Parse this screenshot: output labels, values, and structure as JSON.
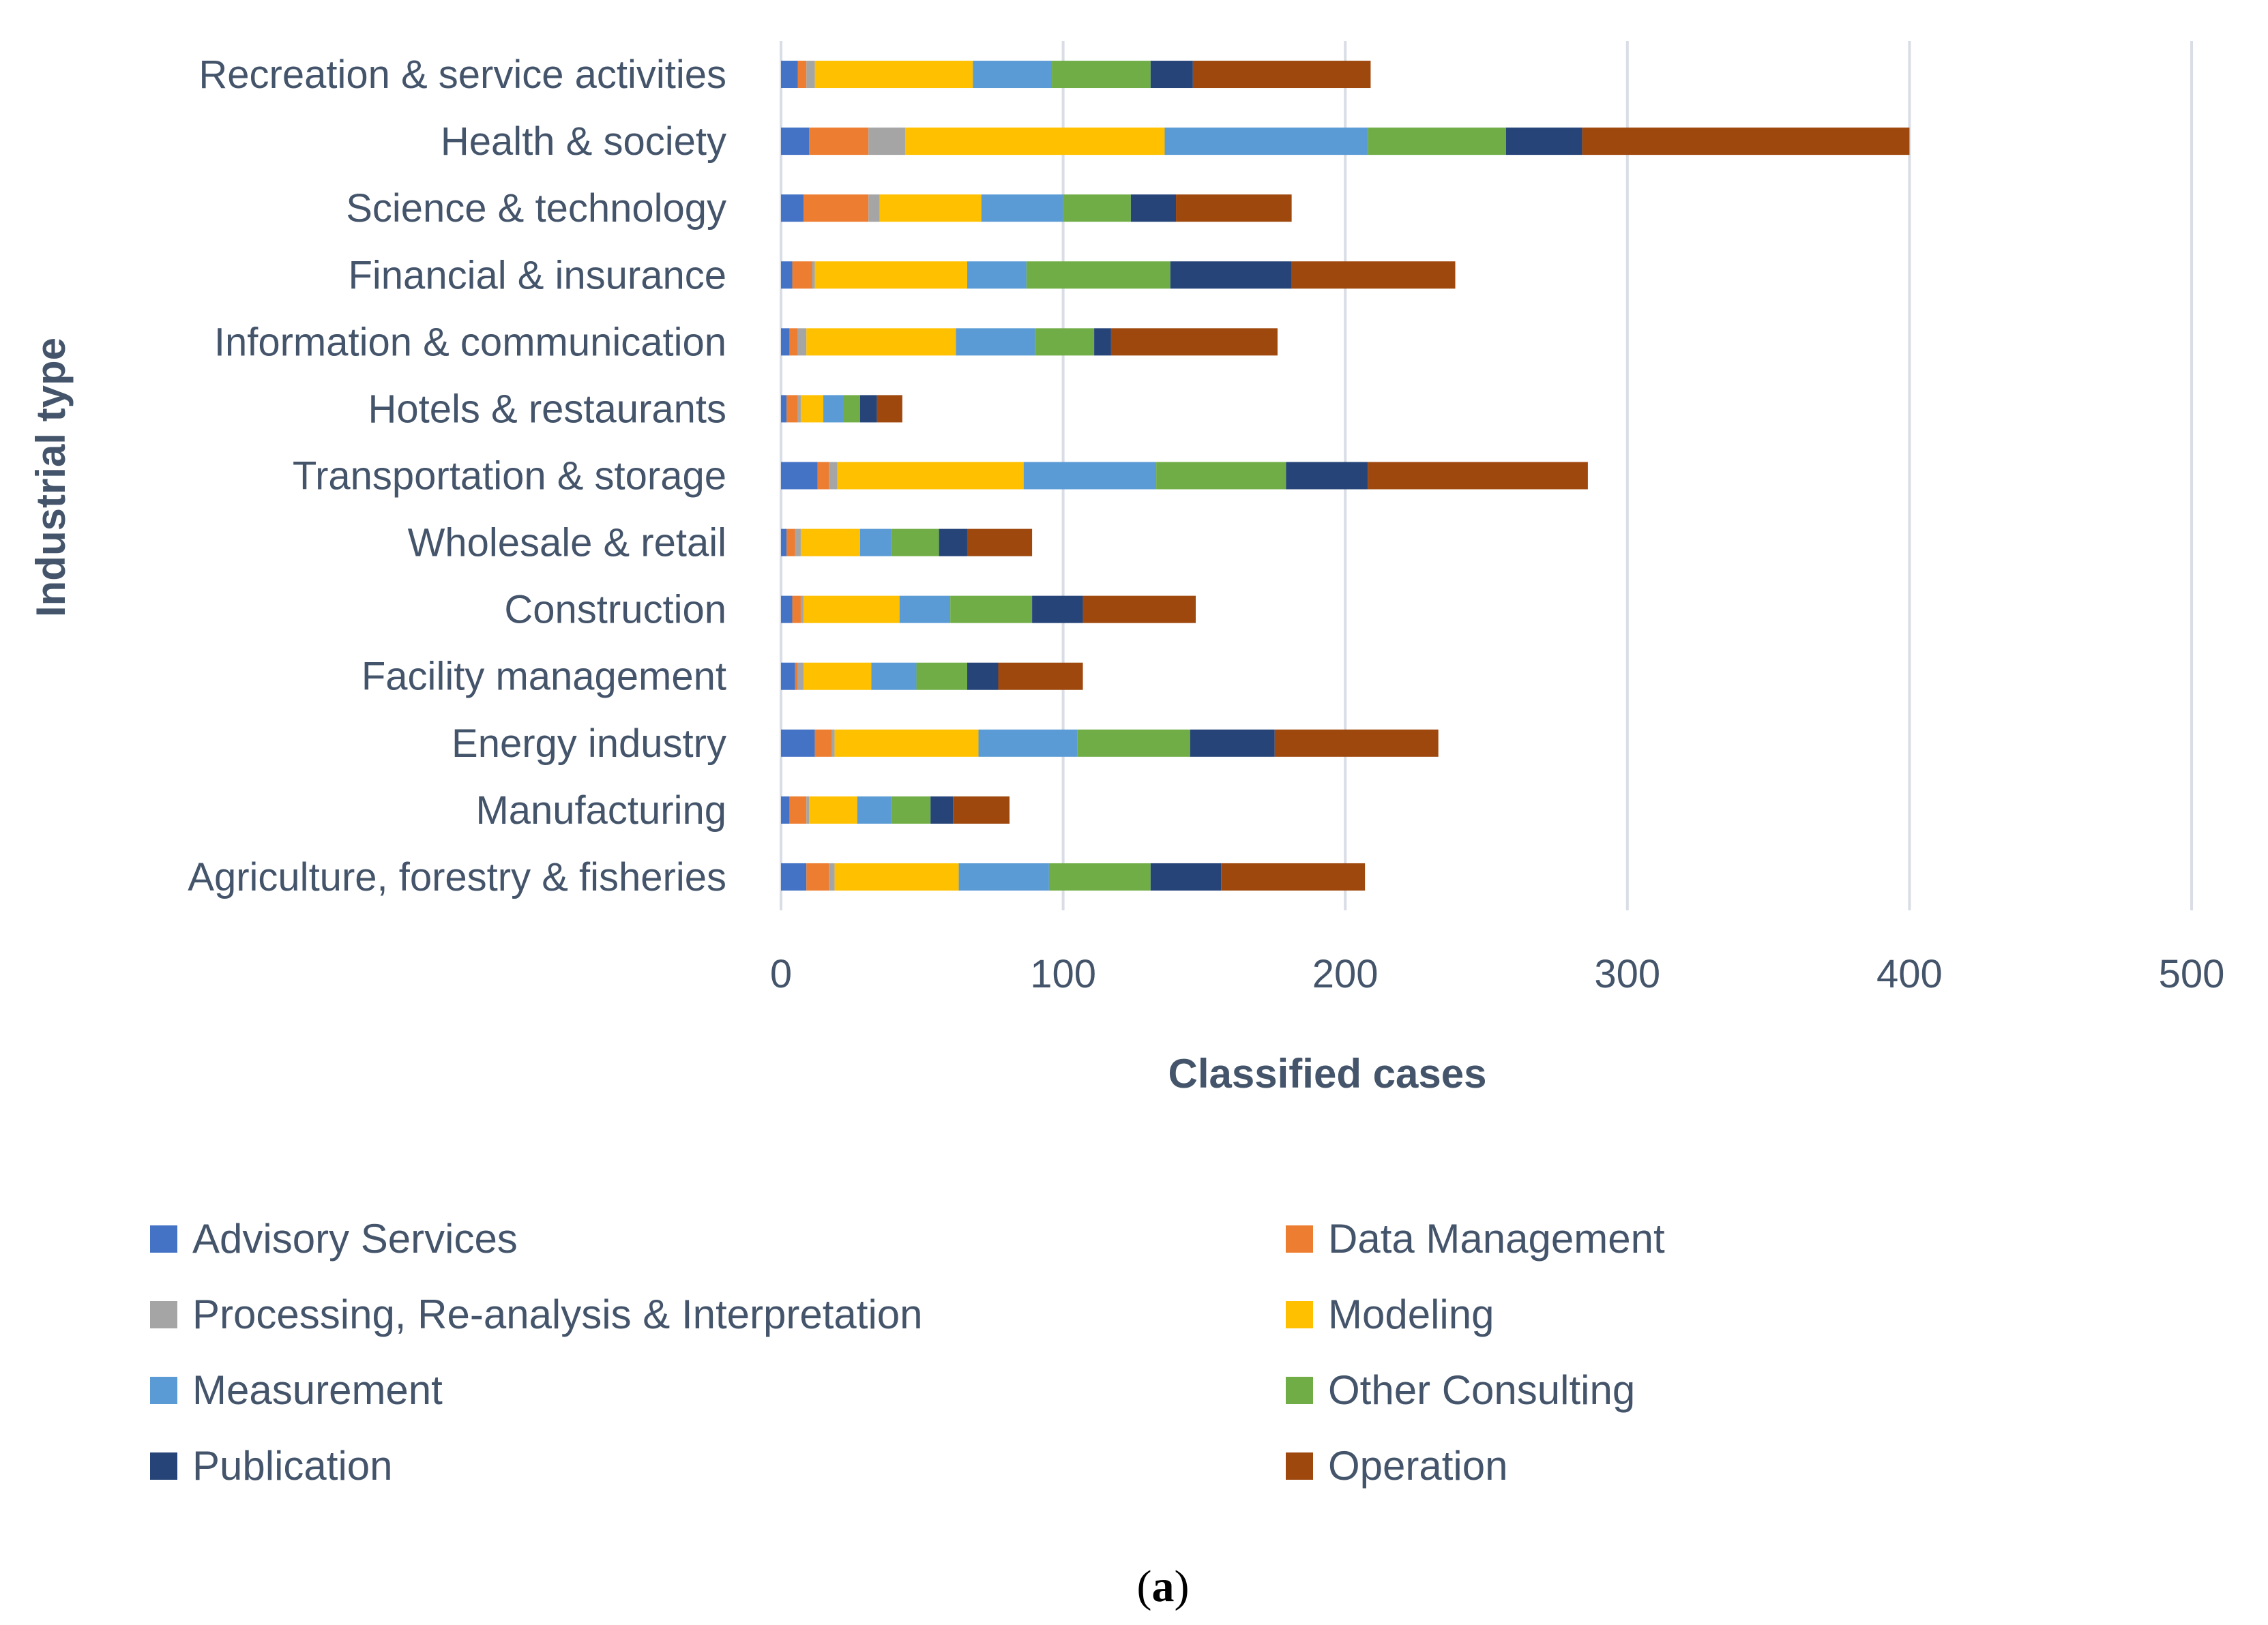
{
  "chart_data": {
    "type": "bar",
    "orientation": "horizontal",
    "stacked": true,
    "categories": [
      "Recreation & service activities",
      "Health & society",
      "Science & technology",
      "Financial & insurance",
      "Information & communication",
      "Hotels & restaurants",
      "Transportation & storage",
      "Wholesale & retail",
      "Construction",
      "Facility management",
      "Energy industry",
      "Manufacturing",
      "Agriculture, forestry & fisheries"
    ],
    "series": [
      {
        "name": "Advisory Services",
        "color": "#4472c4",
        "values": [
          6,
          10,
          8,
          4,
          3,
          2,
          13,
          2,
          4,
          5,
          12,
          3,
          9
        ]
      },
      {
        "name": "Data Management",
        "color": "#ed7d31",
        "values": [
          3,
          21,
          23,
          7,
          3,
          4,
          4,
          3,
          3,
          1,
          6,
          6,
          8
        ]
      },
      {
        "name": "Processing, Re-analysis & Interpretation",
        "color": "#a5a5a5",
        "values": [
          3,
          13,
          4,
          1,
          3,
          1,
          3,
          2,
          1,
          2,
          1,
          1,
          2
        ]
      },
      {
        "name": "Modeling",
        "color": "#ffc000",
        "values": [
          56,
          92,
          36,
          54,
          53,
          8,
          66,
          21,
          34,
          24,
          51,
          17,
          44
        ]
      },
      {
        "name": "Measurement",
        "color": "#5b9bd5",
        "values": [
          28,
          72,
          29,
          21,
          28,
          7,
          47,
          11,
          18,
          16,
          35,
          12,
          32
        ]
      },
      {
        "name": "Other Consulting",
        "color": "#70ad47",
        "values": [
          35,
          49,
          24,
          51,
          21,
          6,
          46,
          17,
          29,
          18,
          40,
          14,
          36
        ]
      },
      {
        "name": "Publication",
        "color": "#264478",
        "values": [
          15,
          27,
          16,
          43,
          6,
          6,
          29,
          10,
          18,
          11,
          30,
          8,
          25
        ]
      },
      {
        "name": "Operation",
        "color": "#9e480e",
        "values": [
          63,
          116,
          41,
          58,
          59,
          9,
          78,
          23,
          40,
          30,
          58,
          20,
          51
        ]
      }
    ],
    "xlim": [
      0,
      500
    ],
    "xticks": [
      "0",
      "100",
      "200",
      "300",
      "400",
      "500"
    ],
    "xlabel": "Classified cases",
    "ylabel": "Industrial type",
    "grid": "vertical",
    "legend_position": "bottom"
  },
  "caption": {
    "open": "(",
    "letter": "a",
    "close": ")"
  }
}
